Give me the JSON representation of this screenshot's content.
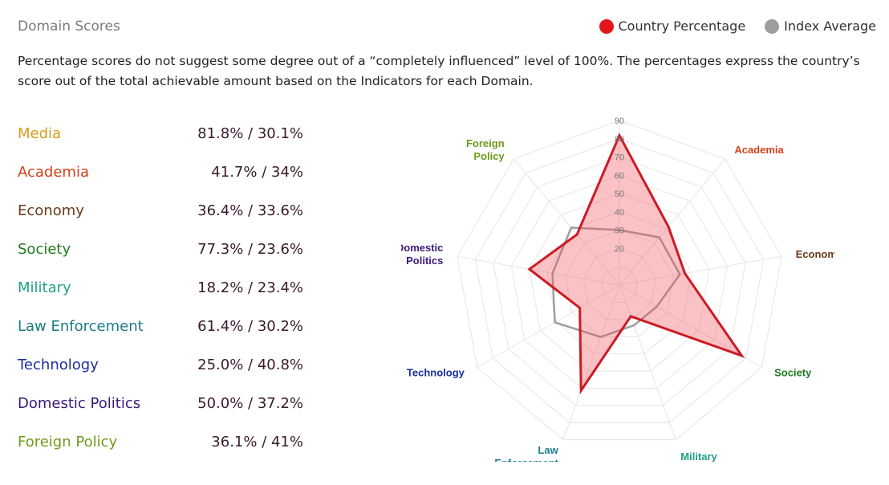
{
  "header": {
    "title": "Domain Scores",
    "description": "Percentage scores do not suggest some degree out of a “completely influenced” level of 100%. The percentages express the country’s score out of the total achievable amount based on the Indicators for each Domain."
  },
  "legend": {
    "items": [
      {
        "label": "Country Percentage",
        "color": "#e3141c"
      },
      {
        "label": "Index Average",
        "color": "#9e9e9e"
      }
    ]
  },
  "domains": [
    {
      "name": "Media",
      "value": "81.8% / 30.1%",
      "color": "#d59b1a"
    },
    {
      "name": "Academia",
      "value": "41.7% / 34%",
      "color": "#d5401a"
    },
    {
      "name": "Economy",
      "value": "36.4% / 33.6%",
      "color": "#6b3a17"
    },
    {
      "name": "Society",
      "value": "77.3% / 23.6%",
      "color": "#1e7a1e"
    },
    {
      "name": "Military",
      "value": "18.2% / 23.4%",
      "color": "#1fa086"
    },
    {
      "name": "Law Enforcement",
      "value": "61.4% / 30.2%",
      "color": "#1a7a8a"
    },
    {
      "name": "Technology",
      "value": "25.0% / 40.8%",
      "color": "#1a2ea0"
    },
    {
      "name": "Domestic Politics",
      "value": "50.0% / 37.2%",
      "color": "#3b1a7a"
    },
    {
      "name": "Foreign Policy",
      "value": "36.1% / 41%",
      "color": "#6f9a1a"
    }
  ],
  "chart_data": {
    "type": "radar",
    "categories": [
      "Media",
      "Academia",
      "Economy",
      "Society",
      "Military",
      "Law Enforcement",
      "Technology",
      "Domestic Politics",
      "Foreign Policy"
    ],
    "category_label_lines": [
      [
        "Media"
      ],
      [
        "Academia"
      ],
      [
        "Economy"
      ],
      [
        "Society"
      ],
      [
        "Military"
      ],
      [
        "Law",
        "Enforcement"
      ],
      [
        "Technology"
      ],
      [
        "Domestic",
        "Politics"
      ],
      [
        "Foreign",
        "Policy"
      ]
    ],
    "series": [
      {
        "name": "Country Percentage",
        "values": [
          81.8,
          41.7,
          36.4,
          77.3,
          18.2,
          61.4,
          25.0,
          50.0,
          36.1
        ],
        "color": "#e3141c"
      },
      {
        "name": "Index Average",
        "values": [
          30.1,
          34,
          33.6,
          23.6,
          23.4,
          30.2,
          40.8,
          37.2,
          41
        ],
        "color": "#9e9e9e"
      }
    ],
    "r_ticks": [
      "20",
      "30",
      "40",
      "50",
      "60",
      "70",
      "80",
      "90"
    ],
    "r_range": [
      0,
      90
    ]
  }
}
